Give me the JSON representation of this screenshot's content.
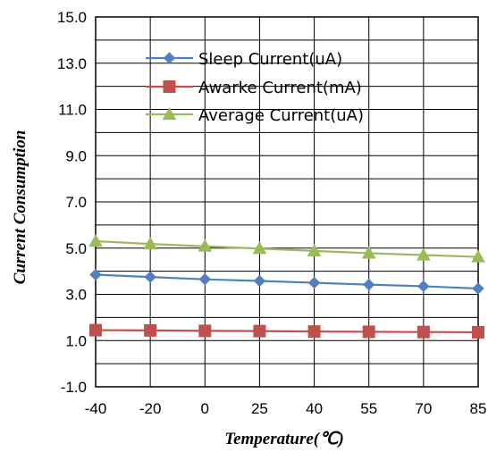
{
  "chart_data": {
    "type": "line",
    "xlabel": "Temperature(℃)",
    "ylabel": "Current  Consumption",
    "categories": [
      "-40",
      "-20",
      "0",
      "25",
      "40",
      "55",
      "70",
      "85"
    ],
    "ylim": [
      -1.0,
      15.0
    ],
    "y_ticks": [
      "-1.0",
      "1.0",
      "3.0",
      "5.0",
      "7.0",
      "9.0",
      "11.0",
      "13.0",
      "15.0"
    ],
    "y_tick_values": [
      -1,
      1,
      3,
      5,
      7,
      9,
      11,
      13,
      15
    ],
    "grid": true,
    "legend_position": "top-center",
    "series": [
      {
        "name": "Sleep Current(uA)",
        "color": "#4f81bd",
        "marker": "diamond",
        "values": [
          3.85,
          3.75,
          3.65,
          3.58,
          3.5,
          3.42,
          3.35,
          3.25
        ]
      },
      {
        "name": "Awarke Current(mA)",
        "color": "#c0504d",
        "marker": "square",
        "values": [
          1.45,
          1.44,
          1.42,
          1.41,
          1.39,
          1.38,
          1.37,
          1.36
        ]
      },
      {
        "name": "Average Current(uA)",
        "color": "#9bbb59",
        "marker": "triangle",
        "values": [
          5.3,
          5.18,
          5.08,
          4.98,
          4.88,
          4.78,
          4.7,
          4.62
        ]
      }
    ]
  }
}
